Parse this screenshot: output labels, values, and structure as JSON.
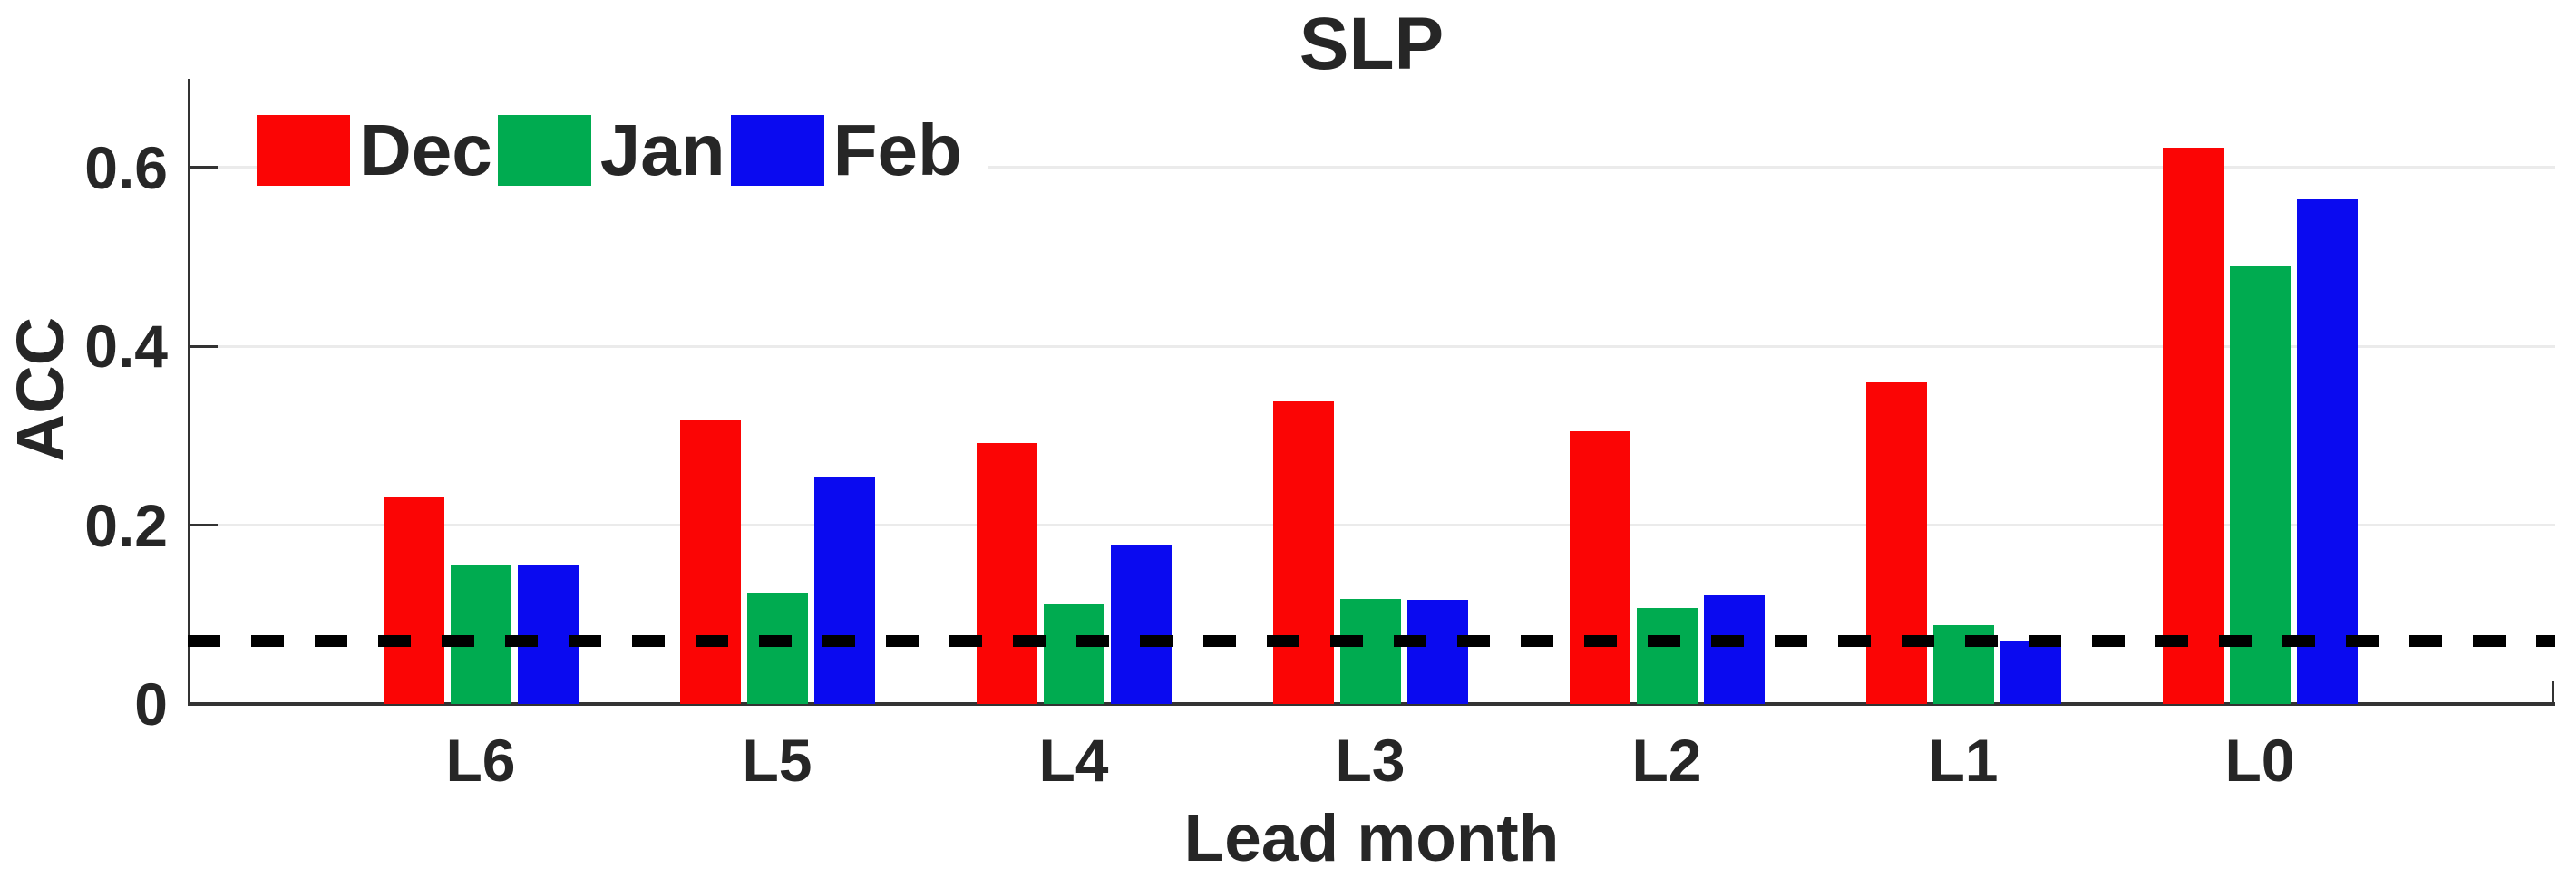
{
  "figure": {
    "background": "#ffffff"
  },
  "chart_data": {
    "type": "bar",
    "title": "SLP",
    "xlabel": "Lead month",
    "ylabel": "ACC",
    "categories": [
      "L6",
      "L5",
      "L4",
      "L3",
      "L2",
      "L1",
      "L0"
    ],
    "series": [
      {
        "name": "Dec",
        "color": "#fb0505",
        "values": [
          0.232,
          0.317,
          0.292,
          0.338,
          0.305,
          0.36,
          0.622
        ]
      },
      {
        "name": "Jan",
        "color": "#00ab50",
        "values": [
          0.155,
          0.124,
          0.111,
          0.118,
          0.107,
          0.088,
          0.49
        ]
      },
      {
        "name": "Feb",
        "color": "#0a0af0",
        "values": [
          0.155,
          0.254,
          0.178,
          0.117,
          0.122,
          0.071,
          0.565
        ]
      }
    ],
    "threshold_line": {
      "value": 0.07,
      "style": "dashed",
      "color": "#000000"
    },
    "ylim": [
      0,
      0.7
    ],
    "yticks": [
      0,
      0.2,
      0.4,
      0.6
    ],
    "ytick_labels": [
      "0",
      "0.2",
      "0.4",
      "0.6"
    ],
    "grid": "horizontal-light",
    "legend_position": "top-left-inside"
  }
}
